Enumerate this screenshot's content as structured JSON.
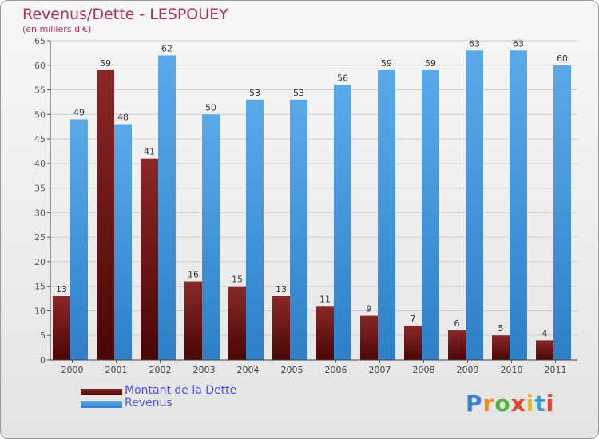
{
  "title": "Revenus/Dette - LESPOUEY",
  "subtitle": "(en milliers d'€)",
  "chart_data": {
    "type": "bar",
    "title": "Revenus/Dette - LESPOUEY",
    "subtitle": "(en milliers d'€)",
    "categories": [
      "2000",
      "2001",
      "2002",
      "2003",
      "2004",
      "2005",
      "2006",
      "2007",
      "2008",
      "2009",
      "2010",
      "2011"
    ],
    "series": [
      {
        "name": "Montant de la Dette",
        "values": [
          13,
          59,
          41,
          16,
          15,
          13,
          11,
          9,
          7,
          6,
          5,
          4
        ],
        "color": "#7a1a1a"
      },
      {
        "name": "Revenus",
        "values": [
          49,
          48,
          62,
          50,
          53,
          53,
          56,
          59,
          59,
          63,
          63,
          60
        ],
        "color": "#4a9ee0"
      }
    ],
    "ylim": [
      0,
      65
    ],
    "yticks": [
      0,
      5,
      10,
      15,
      20,
      25,
      30,
      35,
      40,
      45,
      50,
      55,
      60,
      65
    ],
    "grid": true,
    "legend": "bottom-left"
  },
  "legend": {
    "items": [
      {
        "label": "Montant de la Dette",
        "color": "#6a0d0d"
      },
      {
        "label": "Revenus",
        "color": "#3d8fd8"
      }
    ]
  },
  "logo": {
    "letters": [
      "P",
      "r",
      "o",
      "x",
      "i",
      "t",
      "i"
    ],
    "colors": [
      "#3a7fd0",
      "#f08a1c",
      "#4fb33c",
      "#e8442c",
      "#f0b81c",
      "#3a9fd0",
      "#e8442c"
    ]
  }
}
